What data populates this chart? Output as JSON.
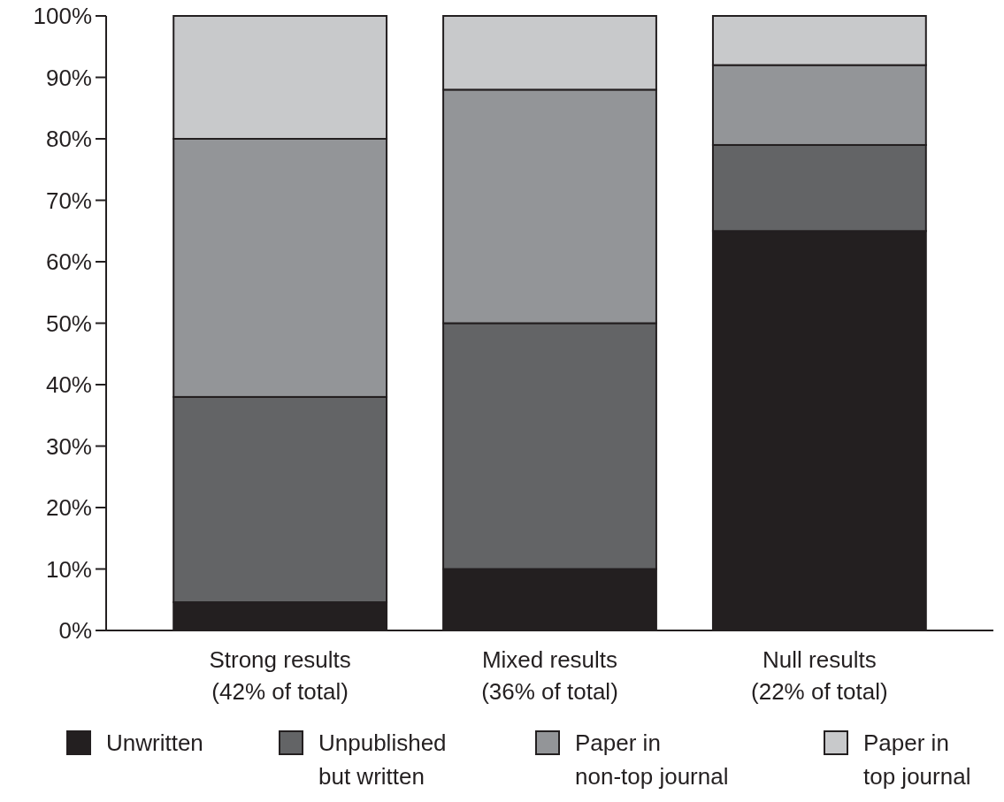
{
  "chart_data": {
    "type": "bar",
    "stacked": true,
    "categories": [
      "Strong results\n(42% of total)",
      "Mixed results\n(36% of total)",
      "Null results\n(22% of total)"
    ],
    "series": [
      {
        "name": "Unwritten",
        "color": "#231f20",
        "values": [
          4.6,
          10,
          65
        ]
      },
      {
        "name": "Unpublished\nbut written",
        "color": "#636466",
        "values": [
          33.4,
          40,
          14
        ]
      },
      {
        "name": "Paper in\nnon-top journal",
        "color": "#939598",
        "values": [
          42,
          38,
          13
        ]
      },
      {
        "name": "Paper in\ntop journal",
        "color": "#c8c9cb",
        "values": [
          20,
          12,
          8
        ]
      }
    ],
    "ylim": [
      0,
      100
    ],
    "yticks": [
      {
        "value": 0,
        "label": "0%"
      },
      {
        "value": 10,
        "label": "10%"
      },
      {
        "value": 20,
        "label": "20%"
      },
      {
        "value": 30,
        "label": "30%"
      },
      {
        "value": 40,
        "label": "40%"
      },
      {
        "value": 50,
        "label": "50%"
      },
      {
        "value": 60,
        "label": "60%"
      },
      {
        "value": 70,
        "label": "70%"
      },
      {
        "value": 80,
        "label": "80%"
      },
      {
        "value": 90,
        "label": "90%"
      },
      {
        "value": 100,
        "label": "100%"
      }
    ],
    "grid": false,
    "legend": "bottom"
  }
}
